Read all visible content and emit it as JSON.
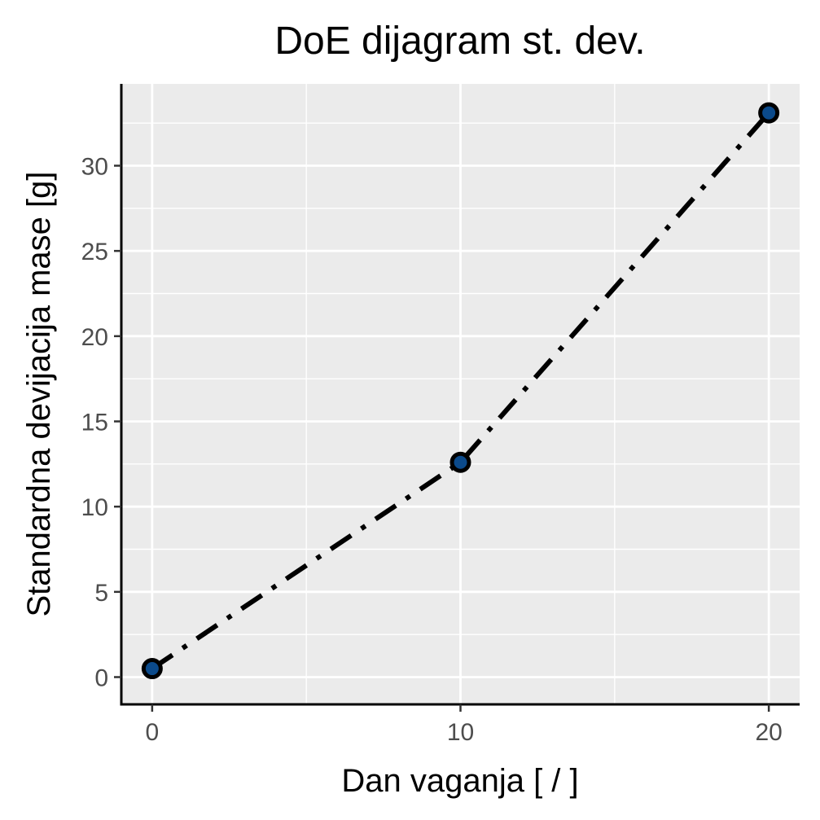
{
  "chart_data": {
    "type": "line",
    "title": "DoE dijagram st. dev.",
    "xlabel": "Dan vaganja [ / ]",
    "ylabel": "Standardna devijacija mase [g]",
    "xlim": [
      -1,
      21
    ],
    "ylim": [
      -1.6,
      34.8
    ],
    "x_ticks": [
      0,
      10,
      20
    ],
    "y_ticks": [
      0,
      5,
      10,
      15,
      20,
      25,
      30
    ],
    "grid": true,
    "legend": "none",
    "series": [
      {
        "x": [
          0,
          10,
          20
        ],
        "y": [
          0.5,
          12.6,
          33.1
        ],
        "line_style": "dashdot",
        "line_color": "#000000",
        "marker_fill": "#0b4a8b",
        "marker_edge": "#000000"
      }
    ],
    "colors": {
      "panel_background": "#ebebeb",
      "grid": "#ffffff",
      "axis_line": "#000000",
      "tick_label": "#4d4d4d"
    }
  }
}
